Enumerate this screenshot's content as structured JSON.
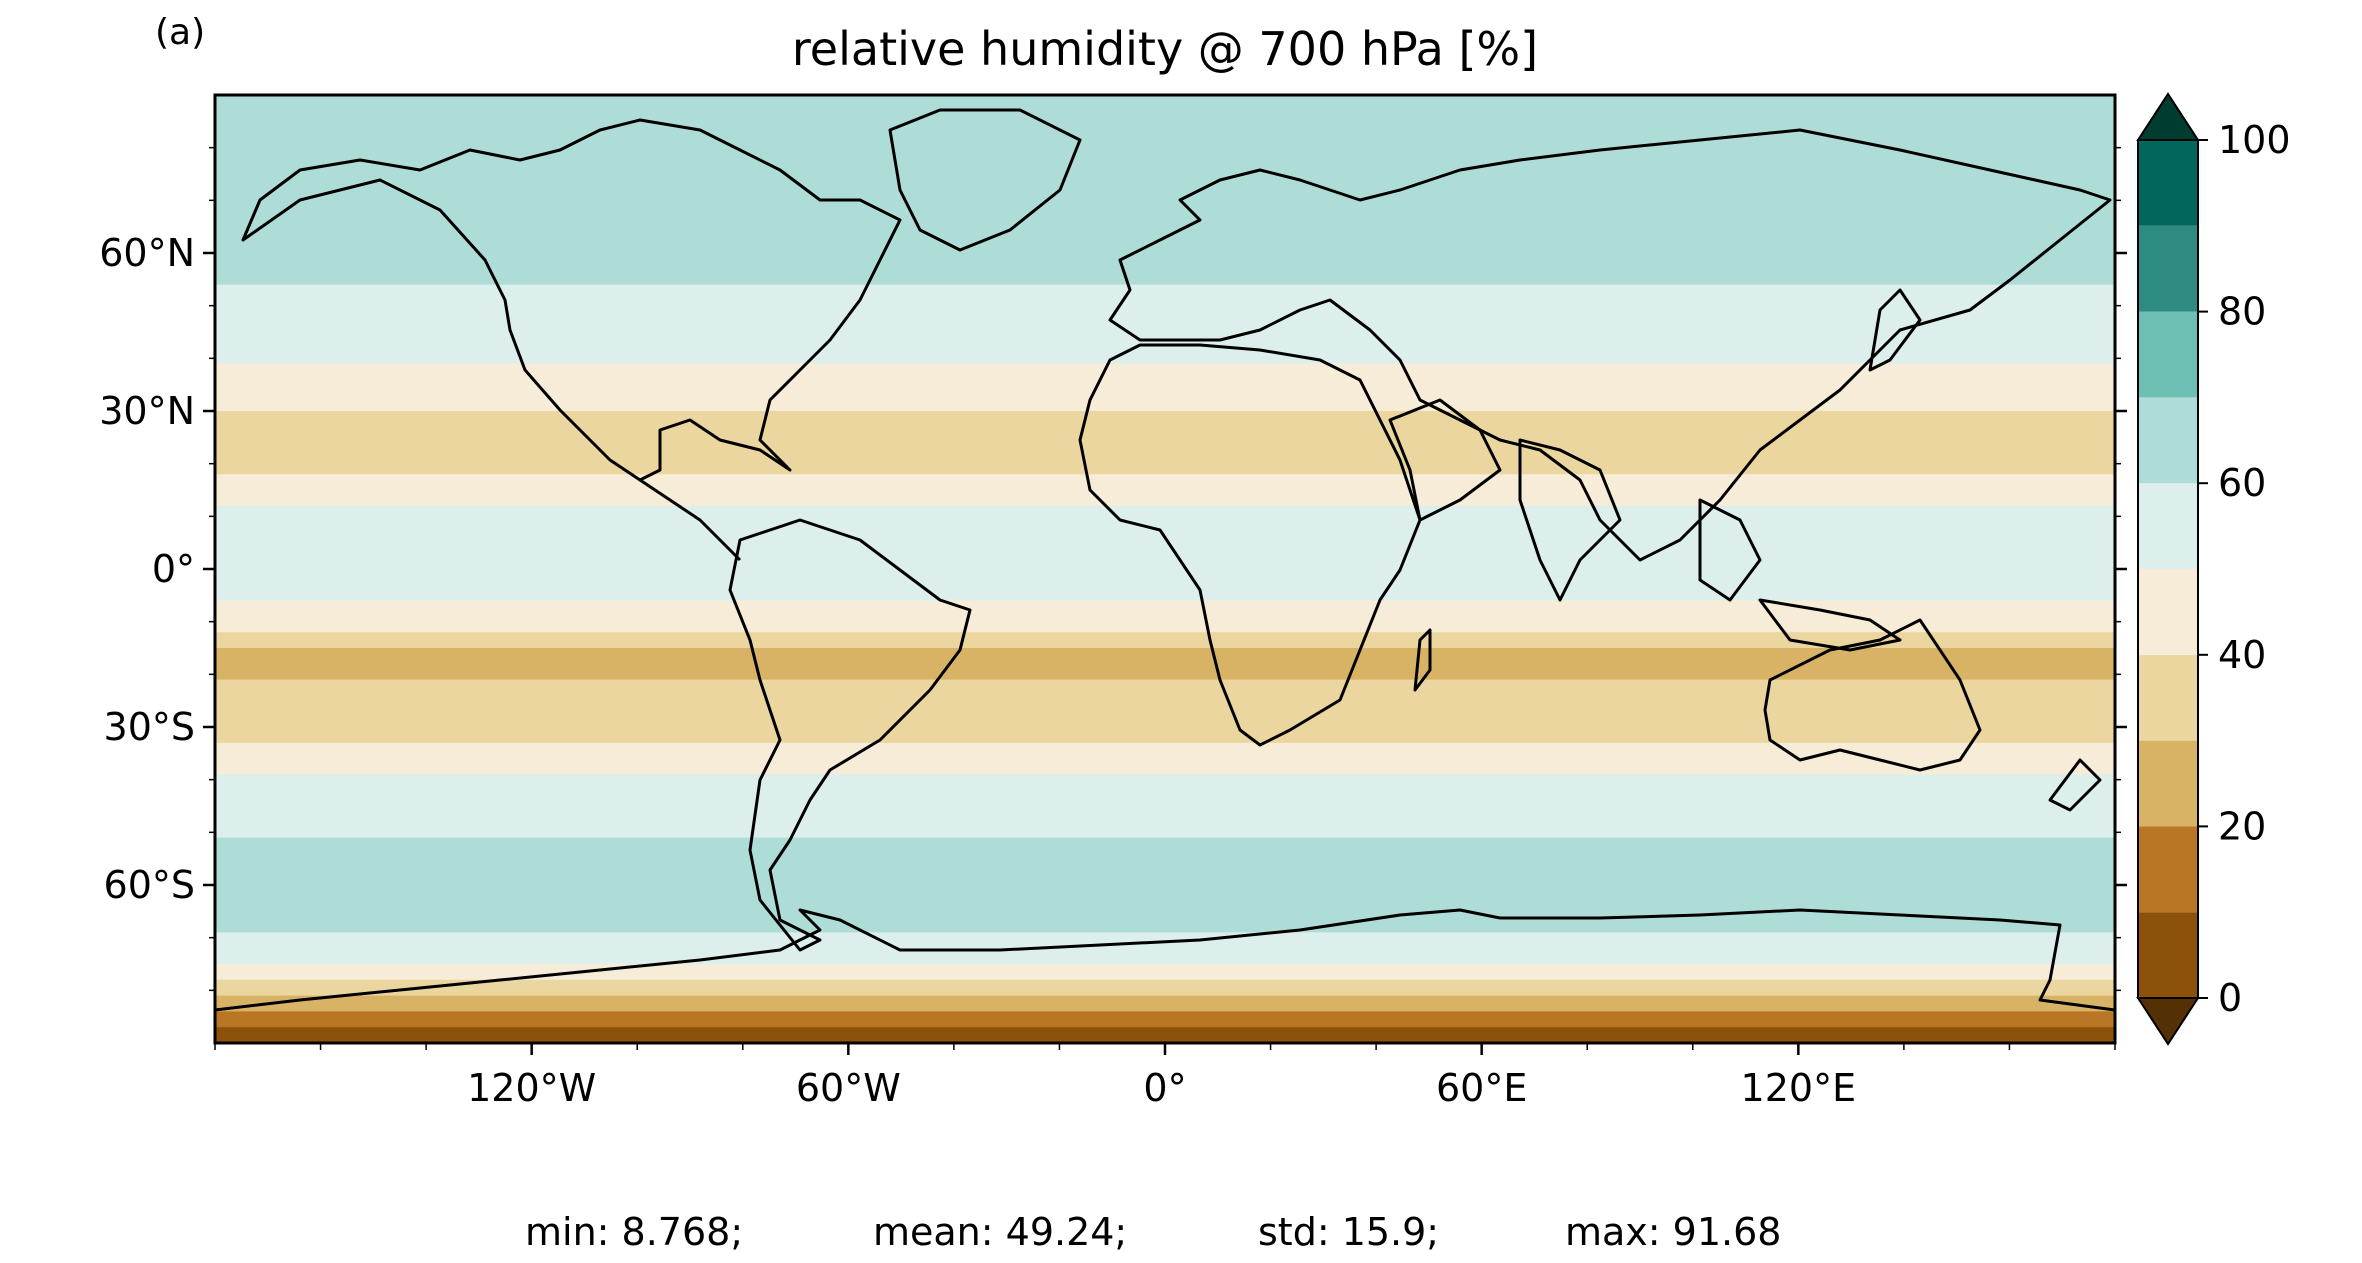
{
  "panel_label": "(a)",
  "title": "relative humidity @ 700 hPa [%]",
  "stats": {
    "min": "min: 8.768;",
    "mean": "mean: 49.24;",
    "std": "std: 15.9;",
    "max": "max: 91.68"
  },
  "map": {
    "projection": "PlateCarree",
    "lon_range": [
      -180,
      180
    ],
    "lat_range": [
      -90,
      90
    ],
    "coastlines": true
  },
  "axes": {
    "lat_ticks": [
      {
        "value": 60,
        "label": "60°N"
      },
      {
        "value": 30,
        "label": "30°N"
      },
      {
        "value": 0,
        "label": "0°"
      },
      {
        "value": -30,
        "label": "30°S"
      },
      {
        "value": -60,
        "label": "60°S"
      }
    ],
    "lon_ticks": [
      {
        "value": -120,
        "label": "120°W"
      },
      {
        "value": -60,
        "label": "60°W"
      },
      {
        "value": 0,
        "label": "0°"
      },
      {
        "value": 60,
        "label": "60°E"
      },
      {
        "value": 120,
        "label": "120°E"
      }
    ]
  },
  "colorbar": {
    "min": 0,
    "max": 100,
    "extend": "both",
    "tick_labels": [
      {
        "value": 0,
        "label": "0"
      },
      {
        "value": 20,
        "label": "20"
      },
      {
        "value": 40,
        "label": "40"
      },
      {
        "value": 60,
        "label": "60"
      },
      {
        "value": 80,
        "label": "80"
      },
      {
        "value": 100,
        "label": "100"
      }
    ],
    "levels": [
      {
        "from": 0,
        "to": 10,
        "color": "#8c510a"
      },
      {
        "from": 10,
        "to": 20,
        "color": "#b97624"
      },
      {
        "from": 20,
        "to": 30,
        "color": "#d8b365"
      },
      {
        "from": 30,
        "to": 40,
        "color": "#ebd69f"
      },
      {
        "from": 40,
        "to": 50,
        "color": "#f6ecd8"
      },
      {
        "from": 50,
        "to": 60,
        "color": "#ddefed"
      },
      {
        "from": 60,
        "to": 70,
        "color": "#aedcd6"
      },
      {
        "from": 70,
        "to": 80,
        "color": "#6ebfb3"
      },
      {
        "from": 80,
        "to": 90,
        "color": "#2d8b82"
      },
      {
        "from": 90,
        "to": 100,
        "color": "#01665e"
      }
    ],
    "under_color": "#543005",
    "over_color": "#003c30"
  },
  "field_approximation": {
    "description_ok": false,
    "zonal_profile": [
      {
        "lat": -90,
        "value": 0
      },
      {
        "lat": -75,
        "value": 55
      },
      {
        "lat": -60,
        "value": 65
      },
      {
        "lat": -45,
        "value": 56
      },
      {
        "lat": -30,
        "value": 38
      },
      {
        "lat": -18,
        "value": 27
      },
      {
        "lat": -5,
        "value": 50
      },
      {
        "lat": 5,
        "value": 60
      },
      {
        "lat": 20,
        "value": 35
      },
      {
        "lat": 30,
        "value": 40
      },
      {
        "lat": 45,
        "value": 55
      },
      {
        "lat": 60,
        "value": 63
      },
      {
        "lat": 75,
        "value": 60
      },
      {
        "lat": 90,
        "value": 62
      }
    ]
  }
}
